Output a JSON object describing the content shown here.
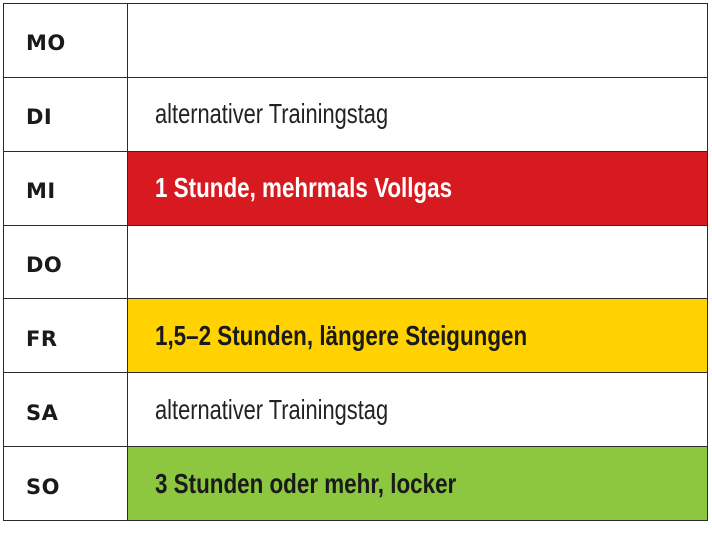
{
  "schedule": {
    "rows": [
      {
        "day": "MO",
        "plan": "",
        "style": "empty",
        "bg": "#ffffff",
        "fg": "#222222"
      },
      {
        "day": "DI",
        "plan": "alternativer Trainingstag",
        "style": "light",
        "bg": "#ffffff",
        "fg": "#222222"
      },
      {
        "day": "MI",
        "plan": "1 Stunde, mehrmals Vollgas",
        "style": "strong",
        "bg": "#d71920",
        "fg": "#ffffff"
      },
      {
        "day": "DO",
        "plan": "",
        "style": "empty",
        "bg": "#ffffff",
        "fg": "#222222"
      },
      {
        "day": "FR",
        "plan": "1,5–2 Stunden, längere Steigungen",
        "style": "strong",
        "bg": "#ffd200",
        "fg": "#1a1a1a"
      },
      {
        "day": "SA",
        "plan": "alternativer Trainingstag",
        "style": "light",
        "bg": "#ffffff",
        "fg": "#222222"
      },
      {
        "day": "SO",
        "plan": "3 Stunden oder mehr, locker",
        "style": "strong",
        "bg": "#8dc63f",
        "fg": "#1a1a1a"
      }
    ]
  }
}
